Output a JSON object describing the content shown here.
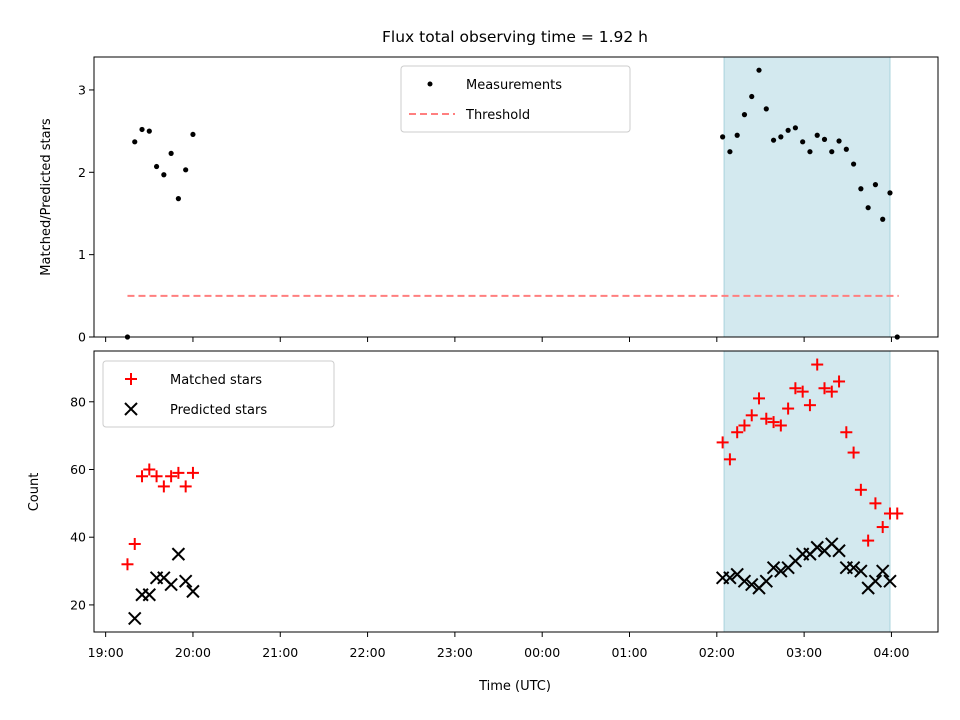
{
  "chart_data": [
    {
      "type": "scatter",
      "title": "Flux total observing time = 1.92 h",
      "xlabel": "",
      "ylabel": "Matched/Predicted stars",
      "x_axis_type": "time",
      "xlim": [
        "18:52",
        "04:32"
      ],
      "ylim": [
        0,
        3.4
      ],
      "yticks": [
        0,
        1,
        2,
        3
      ],
      "legend_position": "top-center",
      "grid": false,
      "shaded_interval": {
        "x": [
          "02:05",
          "03:59"
        ],
        "color": "#d3e9ef"
      },
      "series": [
        {
          "name": "Measurements",
          "marker": "dot",
          "color": "#000000",
          "points": [
            [
              "19:15",
              0.0
            ],
            [
              "19:20",
              2.37
            ],
            [
              "19:25",
              2.52
            ],
            [
              "19:30",
              2.5
            ],
            [
              "19:35",
              2.07
            ],
            [
              "19:40",
              1.97
            ],
            [
              "19:45",
              2.23
            ],
            [
              "19:50",
              1.68
            ],
            [
              "19:55",
              2.03
            ],
            [
              "20:00",
              2.46
            ],
            [
              "02:04",
              2.43
            ],
            [
              "02:09",
              2.25
            ],
            [
              "02:14",
              2.45
            ],
            [
              "02:19",
              2.7
            ],
            [
              "02:24",
              2.92
            ],
            [
              "02:29",
              3.24
            ],
            [
              "02:34",
              2.77
            ],
            [
              "02:39",
              2.39
            ],
            [
              "02:44",
              2.43
            ],
            [
              "02:49",
              2.51
            ],
            [
              "02:54",
              2.54
            ],
            [
              "02:59",
              2.37
            ],
            [
              "03:04",
              2.25
            ],
            [
              "03:09",
              2.45
            ],
            [
              "03:14",
              2.4
            ],
            [
              "03:19",
              2.25
            ],
            [
              "03:24",
              2.38
            ],
            [
              "03:29",
              2.28
            ],
            [
              "03:34",
              2.1
            ],
            [
              "03:39",
              1.8
            ],
            [
              "03:44",
              1.57
            ],
            [
              "03:49",
              1.85
            ],
            [
              "03:54",
              1.43
            ],
            [
              "03:59",
              1.75
            ],
            [
              "04:04",
              0.0
            ]
          ]
        },
        {
          "name": "Threshold",
          "marker": "dashed-line",
          "color": "#ff7f7f",
          "points": [
            [
              "19:15",
              0.5
            ],
            [
              "04:05",
              0.5
            ]
          ]
        }
      ]
    },
    {
      "type": "scatter",
      "title": "",
      "xlabel": "Time (UTC)",
      "ylabel": "Count",
      "x_axis_type": "time",
      "xlim": [
        "18:52",
        "04:32"
      ],
      "ylim": [
        12,
        95
      ],
      "yticks": [
        20,
        40,
        60,
        80
      ],
      "xticks": [
        "19:00",
        "20:00",
        "21:00",
        "22:00",
        "23:00",
        "00:00",
        "01:00",
        "02:00",
        "03:00",
        "04:00"
      ],
      "legend_position": "top-left",
      "grid": false,
      "shaded_interval": {
        "x": [
          "02:05",
          "03:59"
        ],
        "color": "#d3e9ef"
      },
      "series": [
        {
          "name": "Matched stars",
          "marker": "plus",
          "color": "#ff0000",
          "points": [
            [
              "19:15",
              32
            ],
            [
              "19:20",
              38
            ],
            [
              "19:25",
              58
            ],
            [
              "19:30",
              60
            ],
            [
              "19:35",
              58
            ],
            [
              "19:40",
              55
            ],
            [
              "19:45",
              58
            ],
            [
              "19:50",
              59
            ],
            [
              "19:55",
              55
            ],
            [
              "20:00",
              59
            ],
            [
              "02:04",
              68
            ],
            [
              "02:09",
              63
            ],
            [
              "02:14",
              71
            ],
            [
              "02:19",
              73
            ],
            [
              "02:24",
              76
            ],
            [
              "02:29",
              81
            ],
            [
              "02:34",
              75
            ],
            [
              "02:39",
              74
            ],
            [
              "02:44",
              73
            ],
            [
              "02:49",
              78
            ],
            [
              "02:54",
              84
            ],
            [
              "02:59",
              83
            ],
            [
              "03:04",
              79
            ],
            [
              "03:09",
              91
            ],
            [
              "03:14",
              84
            ],
            [
              "03:19",
              83
            ],
            [
              "03:24",
              86
            ],
            [
              "03:29",
              71
            ],
            [
              "03:34",
              65
            ],
            [
              "03:39",
              54
            ],
            [
              "03:44",
              39
            ],
            [
              "03:49",
              50
            ],
            [
              "03:54",
              43
            ],
            [
              "03:59",
              47
            ],
            [
              "04:04",
              47
            ]
          ]
        },
        {
          "name": "Predicted stars",
          "marker": "x",
          "color": "#000000",
          "points": [
            [
              "19:20",
              16
            ],
            [
              "19:25",
              23
            ],
            [
              "19:30",
              23
            ],
            [
              "19:35",
              28
            ],
            [
              "19:40",
              28
            ],
            [
              "19:45",
              26
            ],
            [
              "19:50",
              35
            ],
            [
              "19:55",
              27
            ],
            [
              "20:00",
              24
            ],
            [
              "02:04",
              28
            ],
            [
              "02:09",
              28
            ],
            [
              "02:14",
              29
            ],
            [
              "02:19",
              27
            ],
            [
              "02:24",
              26
            ],
            [
              "02:29",
              25
            ],
            [
              "02:34",
              27
            ],
            [
              "02:39",
              31
            ],
            [
              "02:44",
              30
            ],
            [
              "02:49",
              31
            ],
            [
              "02:54",
              33
            ],
            [
              "02:59",
              35
            ],
            [
              "03:04",
              35
            ],
            [
              "03:09",
              37
            ],
            [
              "03:14",
              36
            ],
            [
              "03:19",
              38
            ],
            [
              "03:24",
              36
            ],
            [
              "03:29",
              31
            ],
            [
              "03:34",
              31
            ],
            [
              "03:39",
              30
            ],
            [
              "03:44",
              25
            ],
            [
              "03:49",
              27
            ],
            [
              "03:54",
              30
            ],
            [
              "03:59",
              27
            ]
          ]
        }
      ]
    }
  ]
}
